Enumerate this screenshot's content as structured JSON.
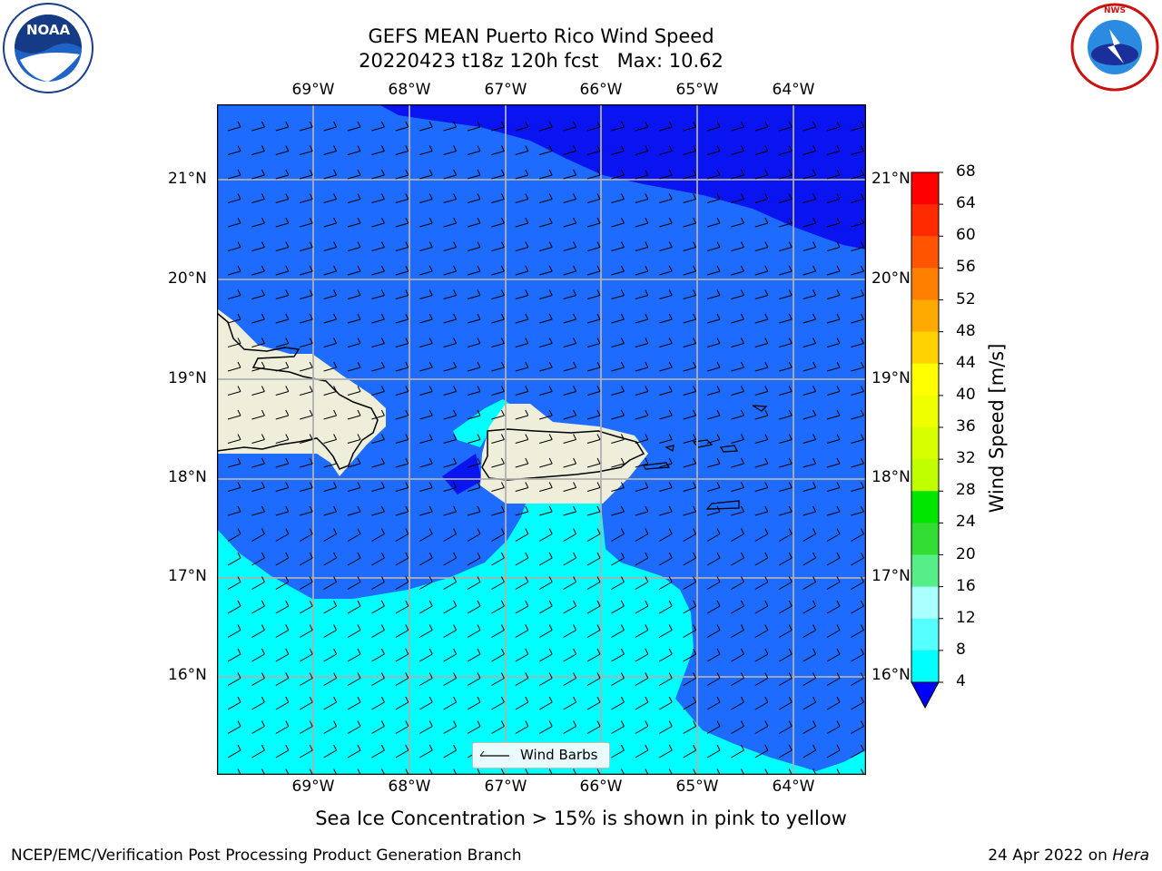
{
  "header": {
    "title_line1": "GEFS MEAN Puerto Rico Wind Speed",
    "title_line2": "20220423 t18z 120h fcst   Max: 10.62"
  },
  "logos": {
    "noaa": {
      "text": "NOAA",
      "ring_text": "NATIONAL OCEANIC AND ATMOSPHERIC ADMINISTRATION · U.S. DEPARTMENT OF COMMERCE",
      "icon": "noaa-logo"
    },
    "nws": {
      "ring_text": "NATIONAL WEATHER SERVICE",
      "icon": "nws-logo"
    }
  },
  "map": {
    "lon_labels": [
      "69°W",
      "68°W",
      "67°W",
      "66°W",
      "65°W",
      "64°W"
    ],
    "lat_labels": [
      "21°N",
      "20°N",
      "19°N",
      "18°N",
      "17°N",
      "16°N"
    ],
    "legend_label": "Wind Barbs",
    "colors": {
      "band_4_8": "#1e6bff",
      "band_0_4": "#0a14f0",
      "band_8_12": "#00ffff",
      "land": "#eeeedb",
      "gridline": "#b0b0b0"
    }
  },
  "colorbar": {
    "title": "Wind Speed [m/s]",
    "ticks": [
      "68",
      "64",
      "60",
      "56",
      "52",
      "48",
      "44",
      "40",
      "36",
      "32",
      "28",
      "24",
      "20",
      "16",
      "12",
      "8",
      "4"
    ],
    "extend_color": "#0000ff",
    "colors": [
      "#ff0000",
      "#ff2a00",
      "#ff5500",
      "#ff8000",
      "#ffaa00",
      "#ffd200",
      "#ffff00",
      "#f0ff00",
      "#d8ff00",
      "#c0ff00",
      "#40e020",
      "#00e600",
      "#33dd33",
      "#55ee88",
      "#aaffff",
      "#55ffff",
      "#00ffff",
      "#1e6bff"
    ]
  },
  "caption": "Sea Ice Concentration > 15% is shown in pink to yellow",
  "footer": {
    "left": "NCEP/EMC/Verification Post Processing Product Generation Branch",
    "date": "24 Apr 2022 on ",
    "machine": "Hera"
  }
}
